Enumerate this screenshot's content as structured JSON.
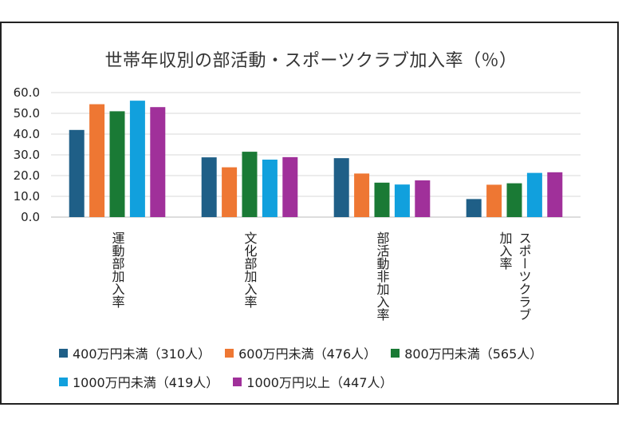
{
  "chart_data": {
    "type": "bar",
    "title": "世帯年収別の部活動・スポーツクラブ加入率（％）",
    "categories": [
      "運動部加入率",
      "文化部加入率",
      "部活動非加入率",
      "スポーツクラブ加入率"
    ],
    "category_lines": [
      [
        "運動部加入率"
      ],
      [
        "文化部加入率"
      ],
      [
        "部活動非加入率"
      ],
      [
        "スポーツクラブ",
        "加入率"
      ]
    ],
    "ylim": [
      0,
      60
    ],
    "yticks": [
      "0.0",
      "10.0",
      "20.0",
      "30.0",
      "40.0",
      "50.0",
      "60.0"
    ],
    "grid": true,
    "legend_position": "bottom",
    "series": [
      {
        "name": "400万円未満（310人）",
        "color": "#1f5f87",
        "values": [
          42.0,
          28.8,
          28.4,
          8.7
        ]
      },
      {
        "name": "600万円未満（476人）",
        "color": "#ee7733",
        "values": [
          54.4,
          24.0,
          21.0,
          15.6
        ]
      },
      {
        "name": "800万円未満（565人）",
        "color": "#1a7a35",
        "values": [
          51.0,
          31.5,
          16.6,
          16.3
        ]
      },
      {
        "name": "1000万円未満（419人）",
        "color": "#11a0dd",
        "values": [
          56.1,
          27.7,
          15.7,
          21.3
        ]
      },
      {
        "name": "1000万円以上（447人）",
        "color": "#a0309a",
        "values": [
          53.0,
          28.9,
          17.7,
          21.6
        ]
      }
    ]
  }
}
